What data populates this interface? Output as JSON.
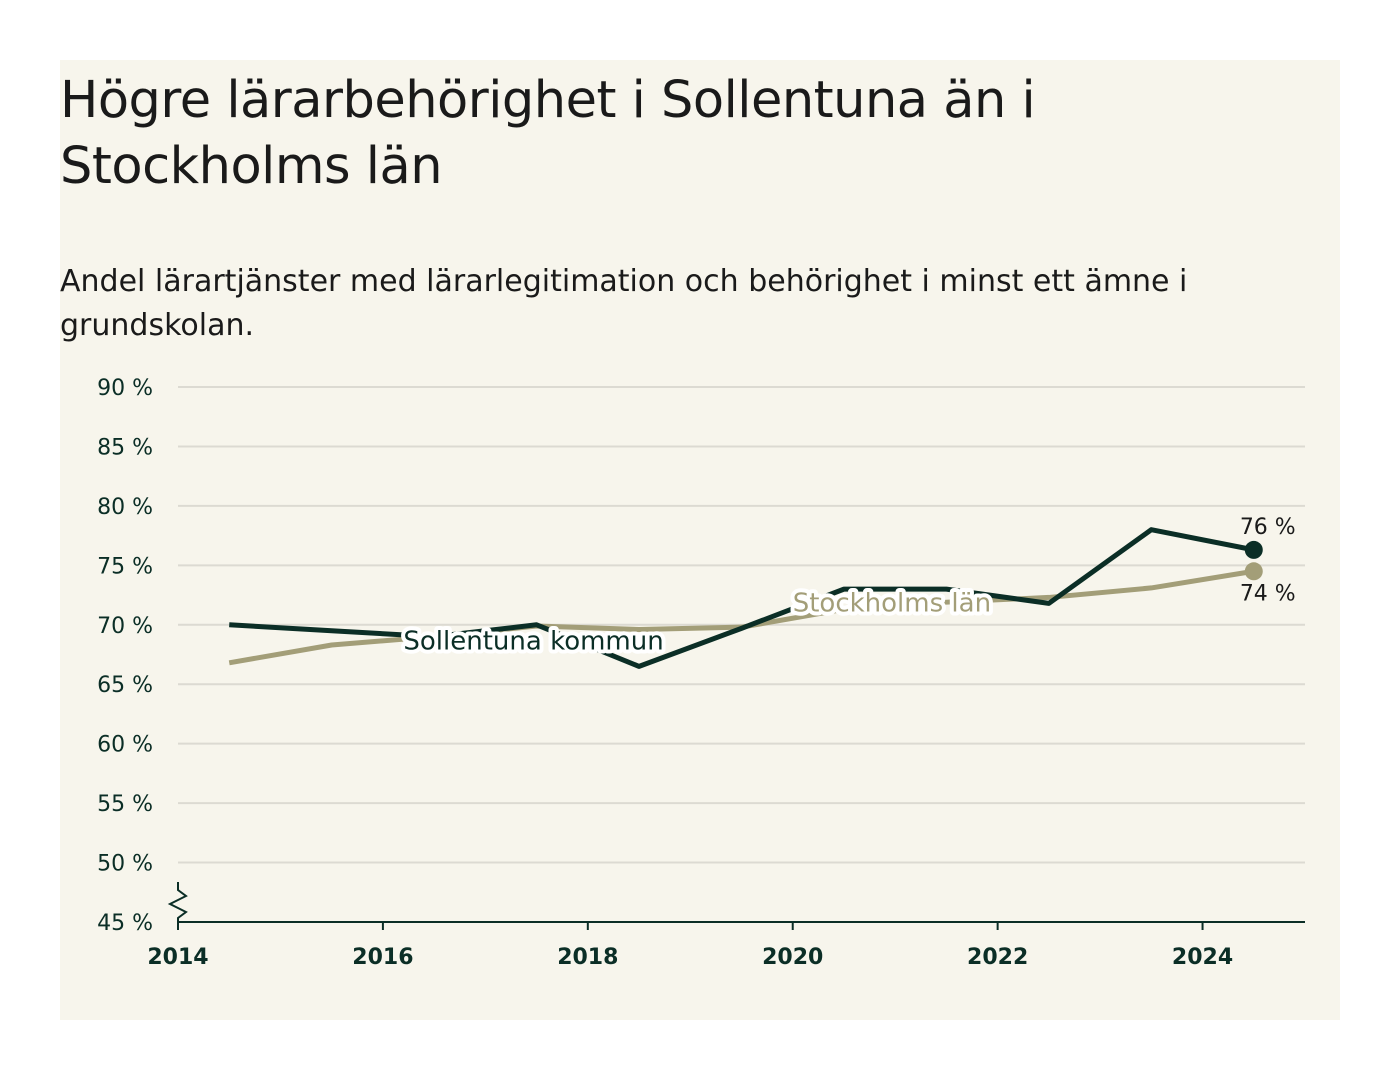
{
  "page": {
    "title": "Högre lärarbehörighet i Sollentuna än i Stockholms län",
    "subtitle": "Andel lärartjänster med lärarlegitimation och behörighet i minst ett ämne i grundskolan."
  },
  "chart_data": {
    "type": "line",
    "title": "Högre lärarbehörighet i Sollentuna än i Stockholms län",
    "subtitle": "Andel lärartjänster med lärarlegitimation och behörighet i minst ett ämne i grundskolan.",
    "x": [
      2014.5,
      2015.5,
      2016.5,
      2017.5,
      2018.5,
      2019.5,
      2020.5,
      2021.5,
      2022.5,
      2023.5,
      2024.5
    ],
    "xlim": [
      2014,
      2025
    ],
    "x_ticks": [
      2014,
      2016,
      2018,
      2020,
      2022,
      2024
    ],
    "x_tick_labels": [
      "2014",
      "2016",
      "2018",
      "2020",
      "2022",
      "2024"
    ],
    "ylim": [
      45,
      90
    ],
    "y_ticks": [
      45,
      50,
      55,
      60,
      65,
      70,
      75,
      80,
      85,
      90
    ],
    "y_tick_labels": [
      "45 %",
      "50 %",
      "55 %",
      "60 %",
      "65 %",
      "70 %",
      "75 %",
      "80 %",
      "85 %",
      "90 %"
    ],
    "y_axis_break": true,
    "grid": true,
    "series": [
      {
        "name": "Stockholms län",
        "color": "#a39e78",
        "values": [
          66.8,
          68.3,
          69.0,
          69.9,
          69.6,
          69.8,
          71.3,
          71.9,
          72.3,
          73.1,
          74.5
        ],
        "end_label": "74 %"
      },
      {
        "name": "Sollentuna kommun",
        "color": "#0b2e26",
        "values": [
          70.0,
          69.5,
          69.0,
          70.0,
          66.5,
          69.7,
          73.0,
          73.0,
          71.8,
          78.0,
          76.3
        ],
        "end_label": "76 %"
      }
    ]
  }
}
